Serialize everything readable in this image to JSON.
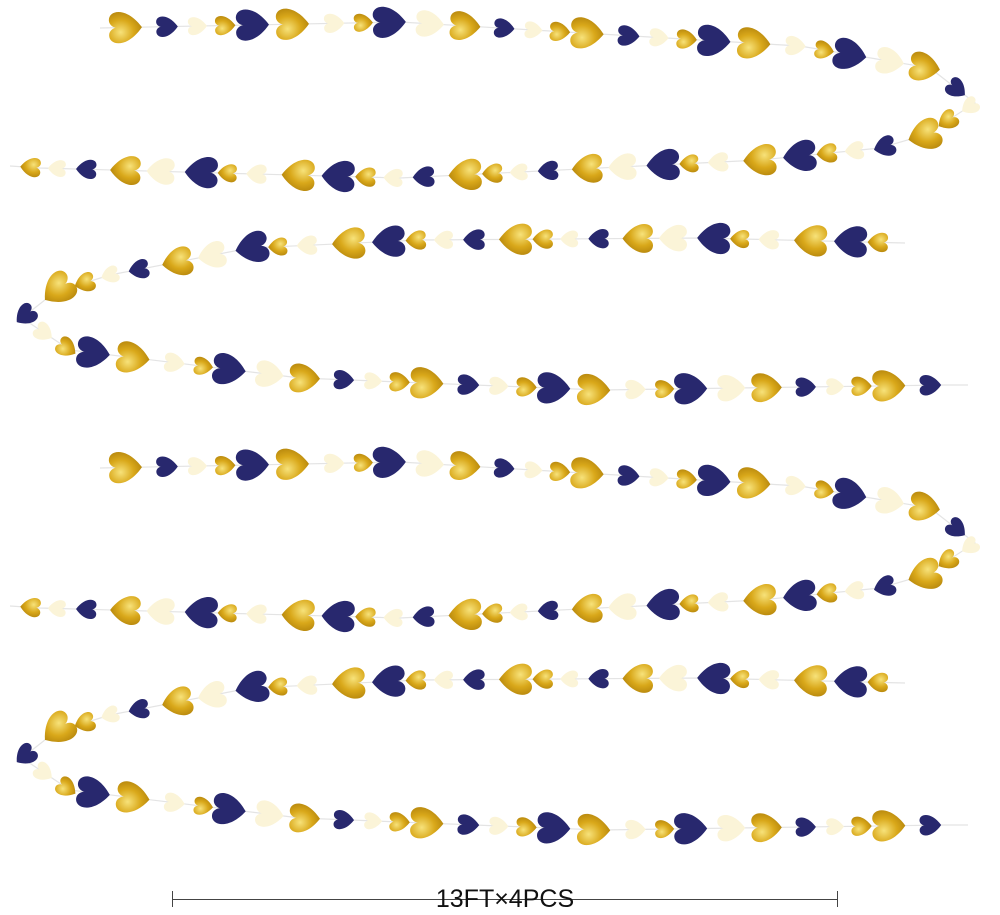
{
  "product": {
    "dimension_label": "13FT×4PCS"
  },
  "colors": {
    "gold": "#d9a81a",
    "gold_highlight": "#f7e27a",
    "navy": "#28286e",
    "cream": "#fbf4d8",
    "string": "#e4e4e4"
  },
  "garland": {
    "strand_count": 4,
    "heart_colors": [
      "gold",
      "navy",
      "cream"
    ]
  }
}
